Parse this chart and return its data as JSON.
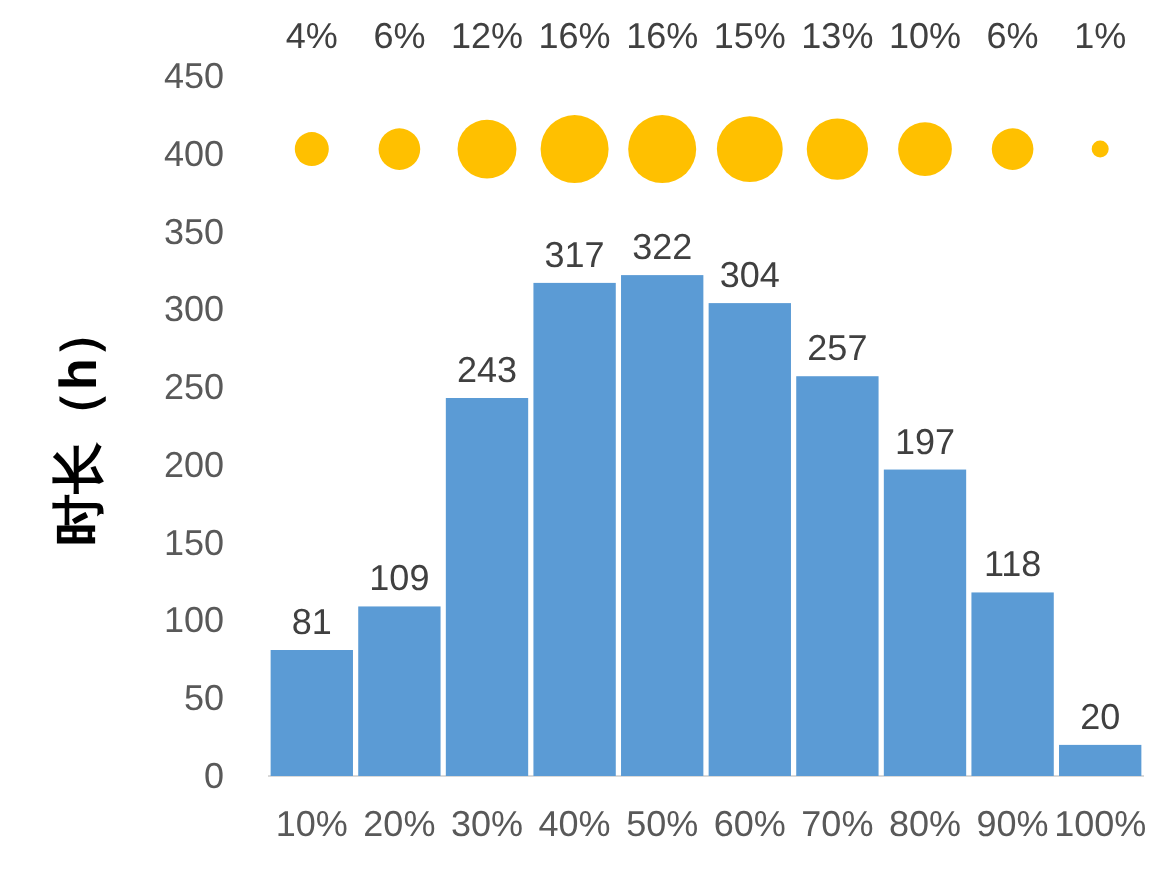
{
  "chart_data": {
    "type": "bar",
    "ylabel": "时长（h）",
    "categories": [
      "10%",
      "20%",
      "30%",
      "40%",
      "50%",
      "60%",
      "70%",
      "80%",
      "90%",
      "100%"
    ],
    "series": [
      {
        "color": "#5b9bd5",
        "values": [
          81,
          109,
          243,
          317,
          322,
          304,
          257,
          197,
          118,
          20
        ]
      },
      {
        "type": "bubble",
        "color": "#ffc000",
        "values": [
          403,
          403,
          403,
          403,
          403,
          403,
          403,
          403,
          403,
          403
        ],
        "sizes": [
          4,
          6,
          12,
          16,
          16,
          15,
          13,
          10,
          6,
          1
        ],
        "value_labels": [
          "4%",
          "6%",
          "12%",
          "16%",
          "16%",
          "15%",
          "13%",
          "10%",
          "6%",
          "1%"
        ]
      }
    ],
    "data_labels": true,
    "ylim": [
      0,
      450
    ],
    "yticks": [
      0,
      50,
      100,
      150,
      200,
      250,
      300,
      350,
      400,
      450
    ]
  }
}
